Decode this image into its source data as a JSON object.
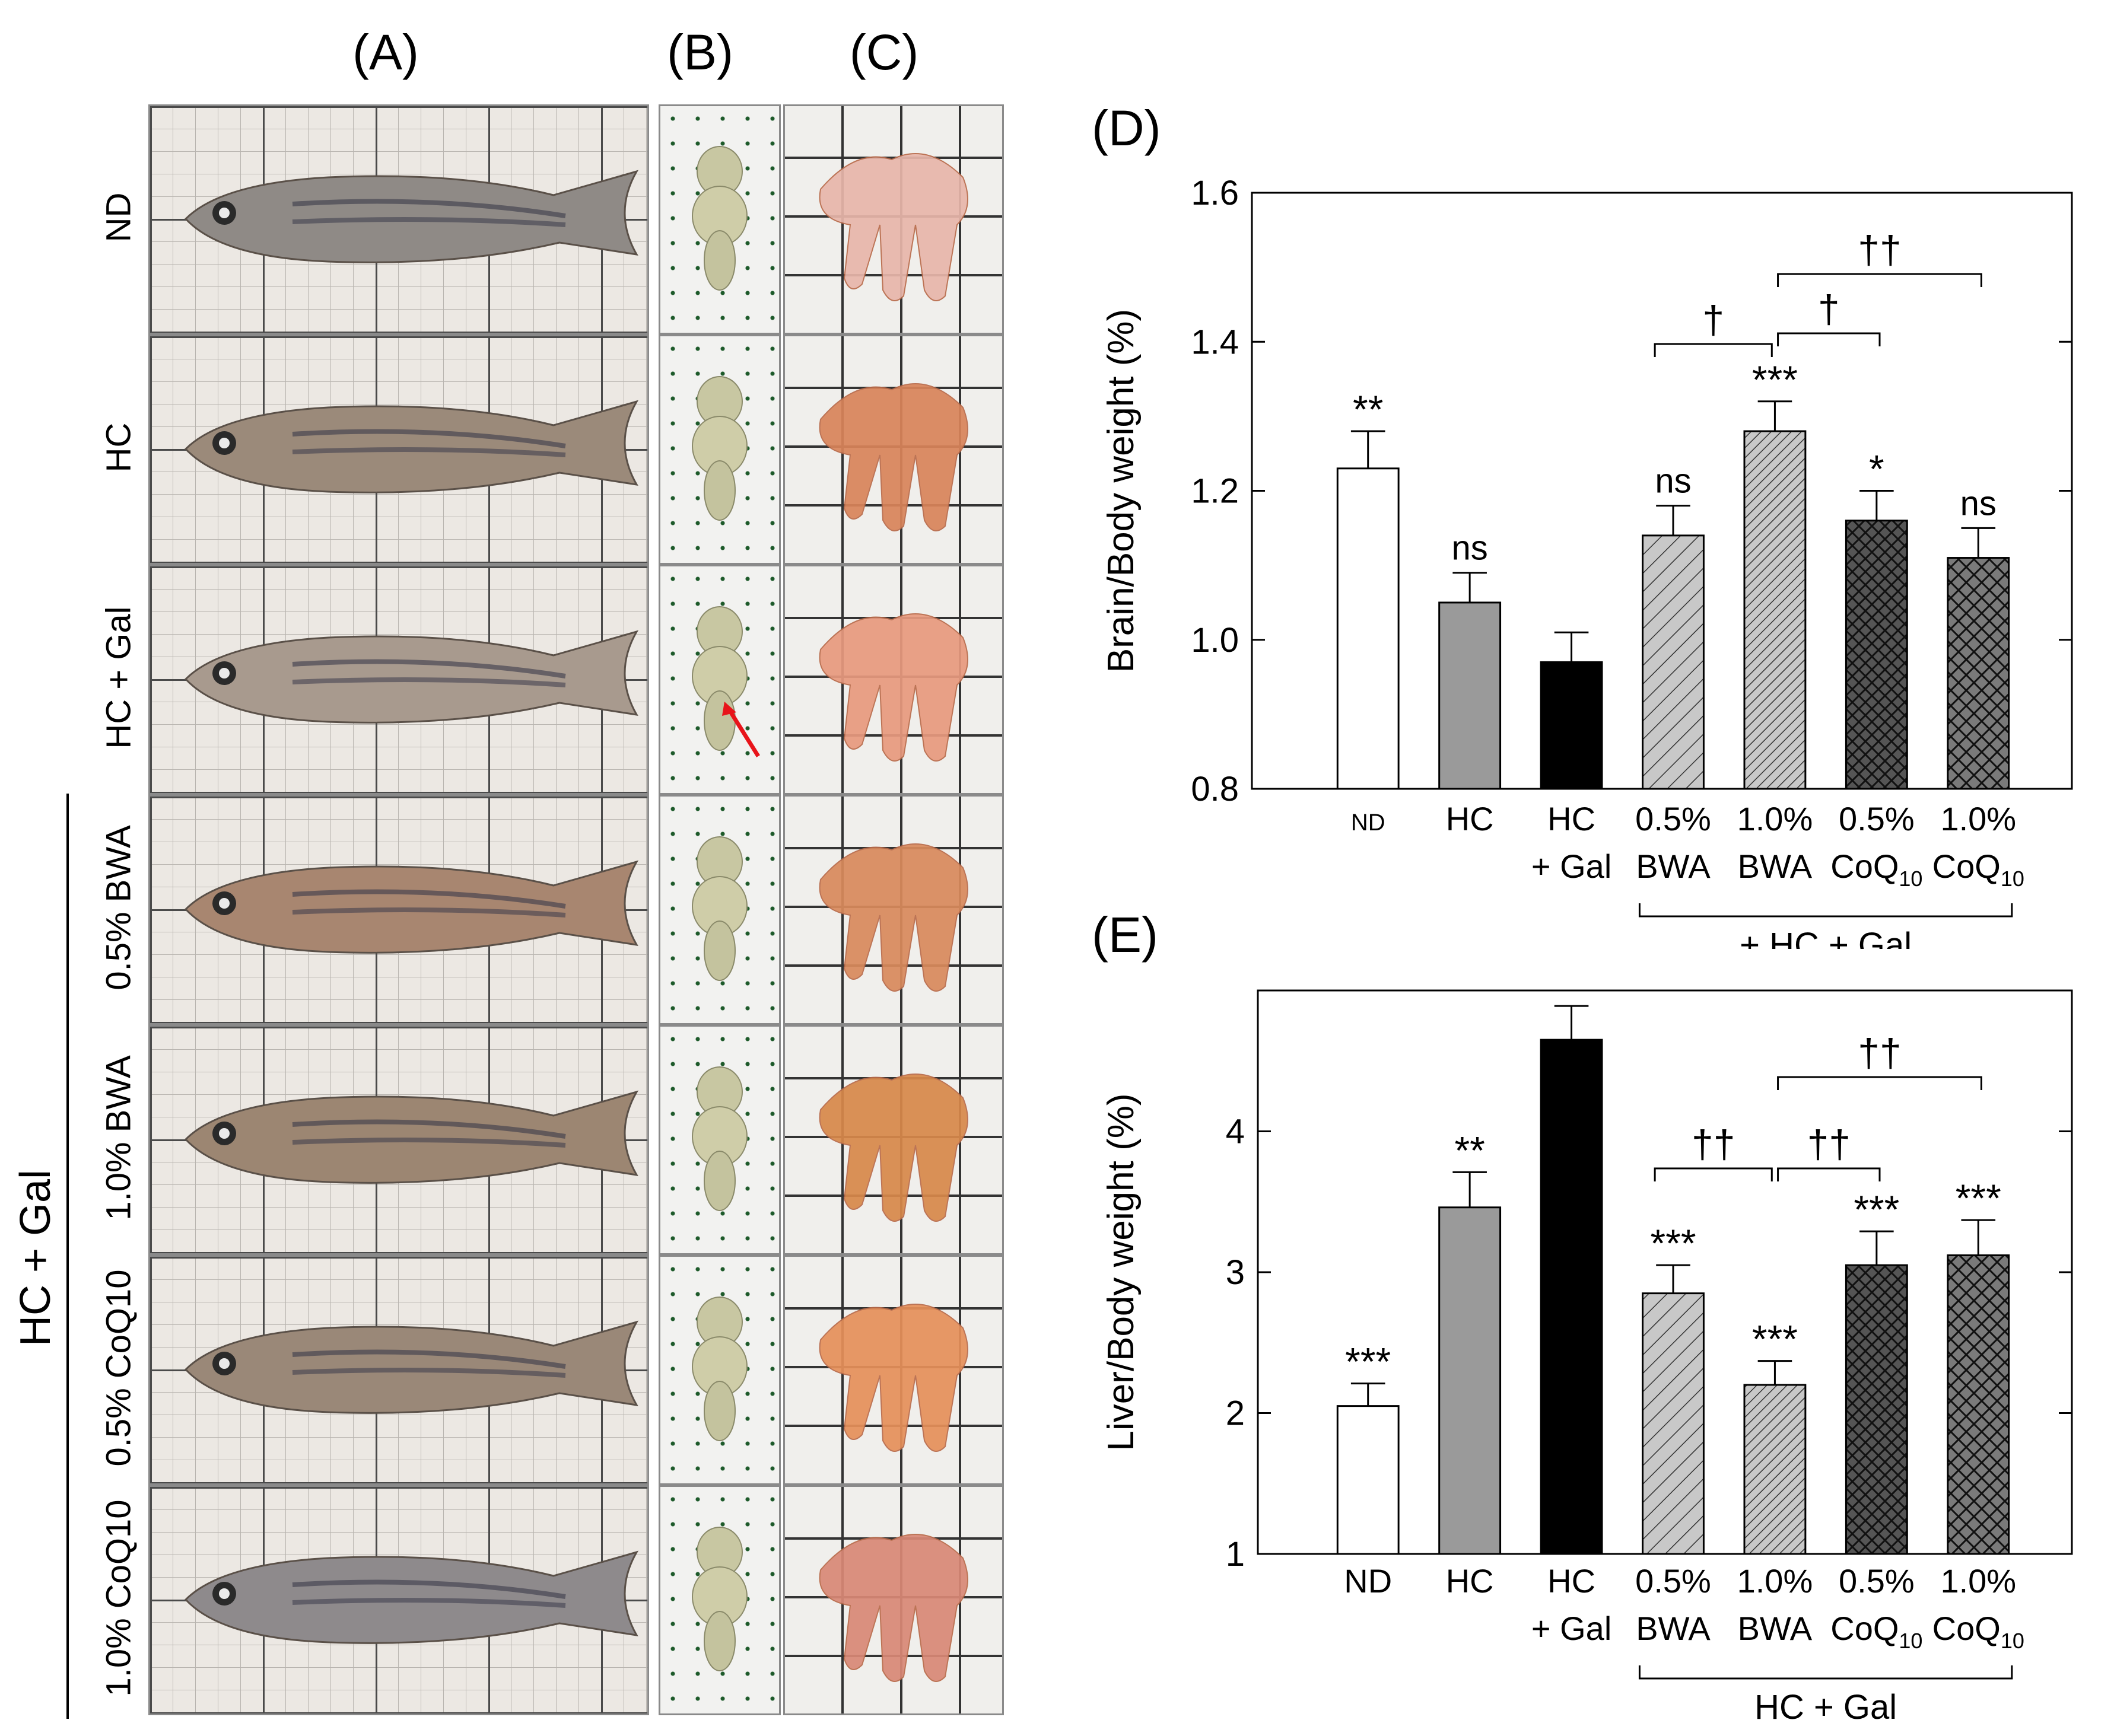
{
  "panels": {
    "A": "(A)",
    "B": "(B)",
    "C": "(C)",
    "D": "(D)",
    "E": "(E)"
  },
  "rows": [
    {
      "label": "ND"
    },
    {
      "label": "HC"
    },
    {
      "label": "HC + Gal"
    },
    {
      "label": "0.5% BWA"
    },
    {
      "label": "1.0% BWA"
    },
    {
      "label": "0.5% CoQ10"
    },
    {
      "label": "1.0% CoQ10"
    }
  ],
  "group_label": "HC  + Gal",
  "colors": {
    "white_bar": "#ffffff",
    "gray_bar": "#9a9a9a",
    "black_bar": "#000000",
    "light_hatch": "#c8c8c8",
    "dark_cross": "#555555",
    "arrow": "#e8141a"
  },
  "chart_data": [
    {
      "id": "D",
      "type": "bar",
      "ylabel": "Brain/Body weight (%)",
      "ylim": [
        0.8,
        1.6
      ],
      "yticks": [
        "0.8",
        "1.0",
        "1.2",
        "1.4",
        "1.6"
      ],
      "categories": [
        {
          "l1": "ND",
          "l2": ""
        },
        {
          "l1": "HC",
          "l2": ""
        },
        {
          "l1": "HC",
          "l2": "+ Gal"
        },
        {
          "l1": "0.5%",
          "l2": "BWA"
        },
        {
          "l1": "1.0%",
          "l2": "BWA"
        },
        {
          "l1": "0.5%",
          "l2": "CoQ10"
        },
        {
          "l1": "1.0%",
          "l2": "CoQ10"
        }
      ],
      "values": [
        1.23,
        1.05,
        0.97,
        1.14,
        1.28,
        1.16,
        1.11
      ],
      "errors": [
        0.05,
        0.04,
        0.04,
        0.04,
        0.04,
        0.04,
        0.04
      ],
      "significance": [
        "**",
        "ns",
        "",
        "ns",
        "***",
        "*",
        "ns"
      ],
      "comparisons": [
        {
          "from": 3,
          "to": 4,
          "label": "†"
        },
        {
          "from": 4,
          "to": 5,
          "label": "†"
        },
        {
          "from": 4,
          "to": 6,
          "label": "††"
        }
      ],
      "group_bracket": {
        "from": 3,
        "to": 6,
        "label": "+ HC + Gal"
      }
    },
    {
      "id": "E",
      "type": "bar",
      "ylabel": "Liver/Body weight (%)",
      "ylim": [
        1,
        5
      ],
      "yticks": [
        "1",
        "2",
        "3",
        "4"
      ],
      "categories": [
        {
          "l1": "ND",
          "l2": ""
        },
        {
          "l1": "HC",
          "l2": ""
        },
        {
          "l1": "HC",
          "l2": "+ Gal"
        },
        {
          "l1": "0.5%",
          "l2": "BWA"
        },
        {
          "l1": "1.0%",
          "l2": "BWA"
        },
        {
          "l1": "0.5%",
          "l2": "CoQ10"
        },
        {
          "l1": "1.0%",
          "l2": "CoQ10"
        }
      ],
      "values": [
        2.05,
        3.46,
        4.65,
        2.85,
        2.2,
        3.05,
        3.12
      ],
      "errors": [
        0.16,
        0.25,
        0.24,
        0.2,
        0.17,
        0.24,
        0.25
      ],
      "significance": [
        "***",
        "**",
        "",
        "***",
        "***",
        "***",
        "***"
      ],
      "comparisons": [
        {
          "from": 3,
          "to": 4,
          "label": "††"
        },
        {
          "from": 4,
          "to": 5,
          "label": "††"
        },
        {
          "from": 4,
          "to": 6,
          "label": "††"
        }
      ],
      "group_bracket": {
        "from": 3,
        "to": 6,
        "label": "HC  + Gal"
      }
    }
  ]
}
